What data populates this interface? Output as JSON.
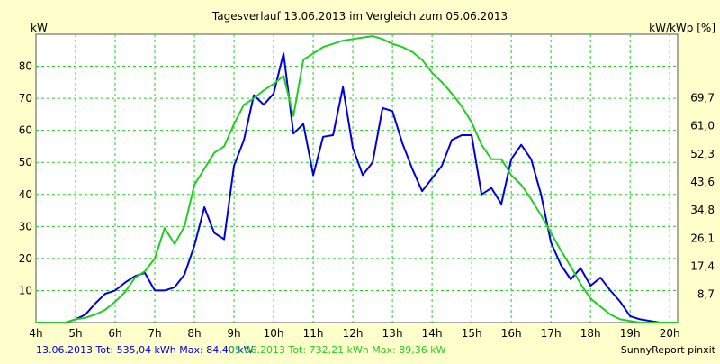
{
  "chart_data": {
    "type": "line",
    "title": "Tagesverlauf 13.06.2013 im Vergleich zum 05.06.2013",
    "ylabel_left": "kW",
    "ylabel_right": "kW/kWp [%]",
    "xlim": [
      4,
      20.2
    ],
    "ylim": [
      0,
      90
    ],
    "x_ticks": [
      {
        "v": 4,
        "label": "4h"
      },
      {
        "v": 5,
        "label": "5h"
      },
      {
        "v": 6,
        "label": "6h"
      },
      {
        "v": 7,
        "label": "7h"
      },
      {
        "v": 8,
        "label": "8h"
      },
      {
        "v": 9,
        "label": "9h"
      },
      {
        "v": 10,
        "label": "10h"
      },
      {
        "v": 11,
        "label": "11h"
      },
      {
        "v": 12,
        "label": "12h"
      },
      {
        "v": 13,
        "label": "13h"
      },
      {
        "v": 14,
        "label": "14h"
      },
      {
        "v": 15,
        "label": "15h"
      },
      {
        "v": 16,
        "label": "16h"
      },
      {
        "v": 17,
        "label": "17h"
      },
      {
        "v": 18,
        "label": "18h"
      },
      {
        "v": 19,
        "label": "19h"
      },
      {
        "v": 20,
        "label": "20h"
      }
    ],
    "y_ticks_left": [
      {
        "v": 10,
        "label": "10"
      },
      {
        "v": 20,
        "label": "20"
      },
      {
        "v": 30,
        "label": "30"
      },
      {
        "v": 40,
        "label": "40"
      },
      {
        "v": 50,
        "label": "50"
      },
      {
        "v": 60,
        "label": "60"
      },
      {
        "v": 70,
        "label": "70"
      },
      {
        "v": 80,
        "label": "80"
      }
    ],
    "y_ticks_right": [
      {
        "v": 8.8,
        "label": "8,7"
      },
      {
        "v": 17.6,
        "label": "17,4"
      },
      {
        "v": 26.3,
        "label": "26,1"
      },
      {
        "v": 35.1,
        "label": "34,8"
      },
      {
        "v": 43.9,
        "label": "43,6"
      },
      {
        "v": 52.6,
        "label": "52,3"
      },
      {
        "v": 61.4,
        "label": "61,0"
      },
      {
        "v": 70.2,
        "label": "69,7"
      }
    ],
    "grid": true,
    "series": [
      {
        "color": "#0000dd",
        "x": [
          4,
          4.75,
          5,
          5.25,
          5.5,
          5.75,
          6,
          6.25,
          6.5,
          6.75,
          7,
          7.25,
          7.5,
          7.75,
          8,
          8.25,
          8.5,
          8.75,
          9,
          9.25,
          9.5,
          9.75,
          10,
          10.25,
          10.5,
          10.75,
          11,
          11.25,
          11.5,
          11.75,
          12,
          12.25,
          12.5,
          12.75,
          13,
          13.25,
          13.5,
          13.75,
          14,
          14.25,
          14.5,
          14.75,
          15,
          15.25,
          15.5,
          15.75,
          16,
          16.25,
          16.5,
          16.75,
          17,
          17.25,
          17.5,
          17.75,
          18,
          18.25,
          18.5,
          18.75,
          19,
          19.25,
          19.5,
          19.75
        ],
        "values": [
          0,
          0,
          1,
          2.5,
          6,
          9,
          10,
          12.5,
          14.5,
          15.5,
          10,
          10,
          11,
          15,
          24,
          36,
          28,
          26,
          49,
          57,
          71,
          68,
          71.5,
          84,
          59,
          62,
          46,
          58,
          58.5,
          73.5,
          54.5,
          46,
          50,
          67,
          66,
          56,
          48,
          41,
          45,
          49,
          57,
          58.5,
          58.5,
          40,
          42,
          37,
          51,
          55.5,
          51,
          40,
          25,
          18,
          13.5,
          17,
          11.5,
          14,
          10,
          6.5,
          2,
          1,
          0.5,
          0
        ]
      },
      {
        "color": "#22cc22",
        "x": [
          4,
          4.75,
          5,
          5.25,
          5.5,
          5.75,
          6,
          6.25,
          6.5,
          6.75,
          7,
          7.25,
          7.5,
          7.75,
          8,
          8.25,
          8.5,
          8.75,
          9,
          9.25,
          9.5,
          9.75,
          10,
          10.25,
          10.5,
          10.75,
          11,
          11.25,
          11.5,
          11.75,
          12,
          12.25,
          12.5,
          12.75,
          13,
          13.25,
          13.5,
          13.75,
          14,
          14.25,
          14.5,
          14.75,
          15,
          15.25,
          15.5,
          15.75,
          16,
          16.25,
          16.5,
          16.75,
          17,
          17.25,
          17.5,
          17.75,
          18,
          18.25,
          18.5,
          18.75,
          19,
          19.25,
          19.5,
          19.75,
          20,
          20.2
        ],
        "values": [
          0,
          0,
          1,
          1.5,
          2.5,
          4,
          6.5,
          9.5,
          14,
          16,
          20,
          29.5,
          24.5,
          30,
          43,
          48,
          53,
          55,
          62,
          68,
          70,
          72.5,
          74.5,
          77,
          64.5,
          82,
          84,
          86,
          87,
          88,
          88.5,
          89,
          89.4,
          88.5,
          87,
          86,
          84.5,
          82,
          78,
          75,
          71.5,
          67.5,
          62.5,
          55.5,
          51,
          51,
          46,
          43,
          38.5,
          33.5,
          28,
          22.5,
          17.5,
          12,
          7.5,
          5,
          2.5,
          1,
          0.5,
          0,
          0,
          0,
          0,
          0
        ]
      }
    ]
  },
  "footer": {
    "series1_text": "13.06.2013 Tot: 535,04 kWh Max: 84,40 kW",
    "series2_text": "05.06.2013 Tot: 732,21 kWh Max: 89,36 kW",
    "credit": "SunnyReport pinxit"
  },
  "colors": {
    "background": "#ffffcc",
    "plot_area": "#ffffff",
    "grid": "#22cc22",
    "series1": "#0000dd",
    "series2": "#22cc22"
  }
}
